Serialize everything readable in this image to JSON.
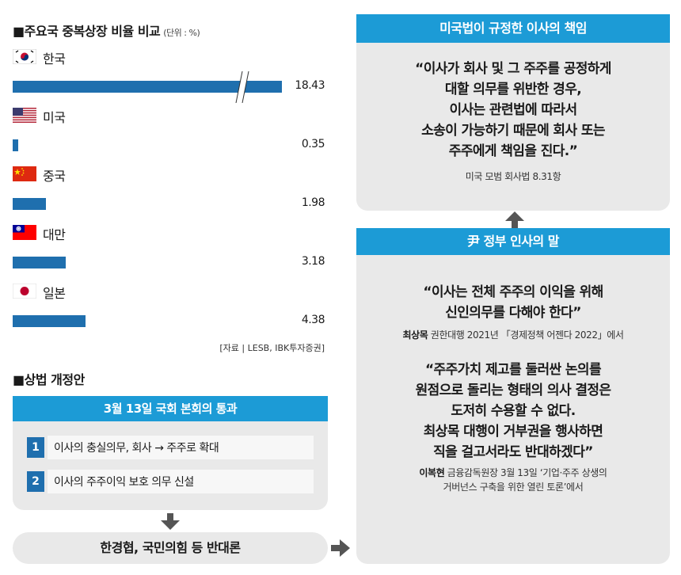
{
  "chart_data": {
    "type": "bar",
    "title": "주요국 중복상장 비율 비교",
    "unit": "(단위 : %)",
    "categories": [
      "한국",
      "미국",
      "중국",
      "대만",
      "일본"
    ],
    "values": [
      18.43,
      0.35,
      1.98,
      3.18,
      4.38
    ],
    "value_labels": [
      "18.43",
      "0.35",
      "1.98",
      "3.18",
      "4.38"
    ],
    "axis_break": "한국",
    "bar_color": "#1f6fae",
    "source": "[자료 | LESB, IBK투자증권]"
  },
  "amendment": {
    "title": "상법 개정안",
    "box_header": "3월 13일 국회 본회의 통과",
    "items": [
      {
        "num": "1",
        "text": "이사의 충실의무, 회사 → 주주로 확대"
      },
      {
        "num": "2",
        "text": "이사의 주주이익 보호 의무 신설"
      }
    ],
    "opposition": "한경협, 국민의힘 등 반대론"
  },
  "us_law": {
    "header": "미국법이 규정한 이사의 책임",
    "quote": "“이사가 회사 및 그 주주를 공정하게 대할 의무를 위반한 경우, 이사는 관련법에 따라서 소송이 가능하기 때문에 회사 또는 주주에게 책임을 진다.”",
    "quote_lines": [
      "“이사가 회사 및 그 주주를 공정하게",
      "대할 의무를 위반한 경우,",
      "이사는 관련법에 따라서",
      "소송이 가능하기 때문에 회사 또는",
      "주주에게 책임을 진다.”"
    ],
    "source": "미국 모범 회사법 8.31항"
  },
  "officials": {
    "header": "尹 정부 인사의 말",
    "quote1_lines": [
      "“이사는 전체 주주의 이익을 위해",
      "신인의무를 다해야 한다”"
    ],
    "speaker1": "최상목",
    "caption1": " 권한대행 2021년 「경제정책 어젠다 2022」에서",
    "quote2_lines": [
      "“주주가치 제고를 둘러싼 논의를",
      "원점으로 돌리는 형태의 의사 결정은",
      "도저히 수용할 수 없다.",
      "최상목 대행이 거부권을 행사하면",
      "직을 걸고서라도 반대하겠다”"
    ],
    "speaker2": "이복현",
    "caption2_line1": " 금융감독원장 3월 13일 ‘기업·주주 상생의",
    "caption2_line2": "거버넌스 구축을 위한 열린 토론’에서"
  },
  "colors": {
    "accent_blue": "#1c9bd6",
    "bar_blue": "#1f6fae",
    "panel_gray": "#e9e9e9"
  }
}
